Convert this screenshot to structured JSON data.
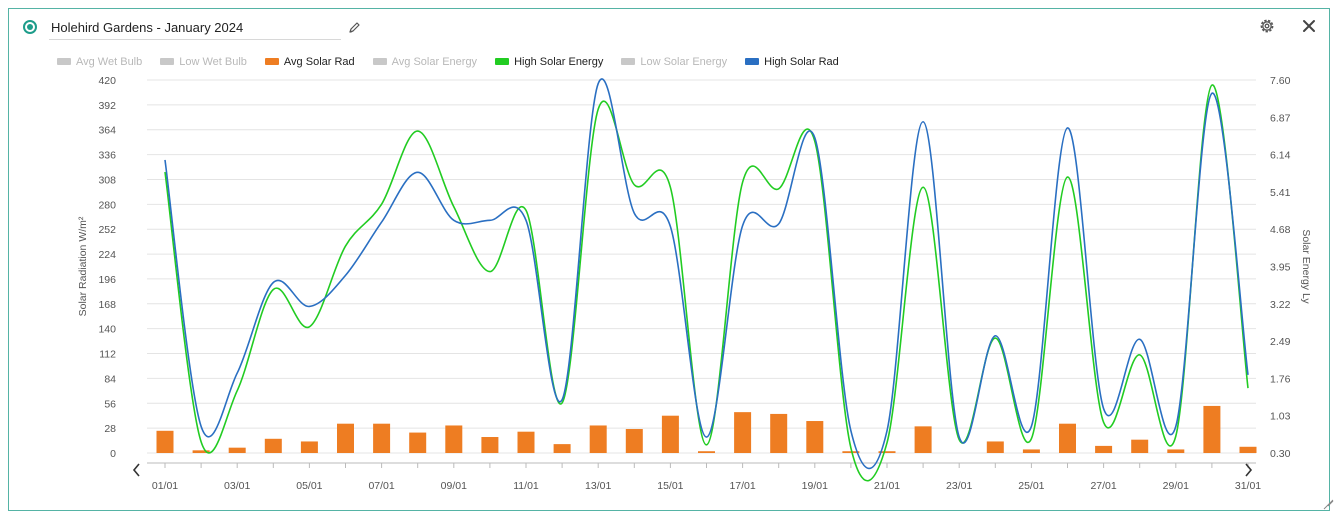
{
  "header": {
    "title": "Holehird Gardens - January 2024"
  },
  "icons": {
    "status": "radio-dot-icon",
    "edit": "pencil-icon",
    "settings": "gear-icon",
    "close": "close-icon"
  },
  "legend": [
    {
      "label": "Avg Wet Bulb",
      "color": "#c8c8c8",
      "active": false
    },
    {
      "label": "Low Wet Bulb",
      "color": "#c8c8c8",
      "active": false
    },
    {
      "label": "Avg Solar Rad",
      "color": "#ee7d22",
      "active": true
    },
    {
      "label": "Avg Solar Energy",
      "color": "#c8c8c8",
      "active": false
    },
    {
      "label": "High Solar Energy",
      "color": "#22cc22",
      "active": true
    },
    {
      "label": "Low Solar Energy",
      "color": "#c8c8c8",
      "active": false
    },
    {
      "label": "High Solar Rad",
      "color": "#2a6fc2",
      "active": true
    }
  ],
  "chart_data": {
    "type": "bar+line",
    "x": [
      "01/01",
      "02/01",
      "03/01",
      "04/01",
      "05/01",
      "06/01",
      "07/01",
      "08/01",
      "09/01",
      "10/01",
      "11/01",
      "12/01",
      "13/01",
      "14/01",
      "15/01",
      "16/01",
      "17/01",
      "18/01",
      "19/01",
      "20/01",
      "21/01",
      "22/01",
      "23/01",
      "24/01",
      "25/01",
      "26/01",
      "27/01",
      "28/01",
      "29/01",
      "30/01",
      "31/01"
    ],
    "x_tick_labels": [
      "01/01",
      "03/01",
      "05/01",
      "07/01",
      "09/01",
      "11/01",
      "13/01",
      "15/01",
      "17/01",
      "19/01",
      "21/01",
      "23/01",
      "25/01",
      "27/01",
      "29/01",
      "31/01"
    ],
    "ylabel_left": "Solar Radiation W/m²",
    "ylabel_right": "Solar Energy Ly",
    "ylim_left": [
      0,
      420
    ],
    "yticks_left": [
      "0",
      "28",
      "56",
      "84",
      "112",
      "140",
      "168",
      "196",
      "224",
      "252",
      "280",
      "308",
      "336",
      "364",
      "392",
      "420"
    ],
    "ylim_right": [
      0.3,
      7.6
    ],
    "yticks_right": [
      "0.30",
      "1.03",
      "1.76",
      "2.49",
      "3.22",
      "3.95",
      "4.68",
      "5.41",
      "6.14",
      "6.87",
      "7.60"
    ],
    "grid": true,
    "legend_position": "top-left",
    "series": [
      {
        "name": "Avg Solar Rad",
        "kind": "bar",
        "axis": "left",
        "color": "#ee7d22",
        "values": [
          25,
          3,
          6,
          16,
          13,
          33,
          33,
          23,
          31,
          18,
          24,
          10,
          31,
          27,
          42,
          2,
          46,
          44,
          36,
          2,
          2,
          30,
          0,
          13,
          4,
          33,
          8,
          15,
          4,
          53,
          7
        ]
      },
      {
        "name": "High Solar Energy",
        "kind": "line",
        "axis": "right",
        "color": "#22cc22",
        "values": [
          5.8,
          0.52,
          1.52,
          3.5,
          2.77,
          4.35,
          5.17,
          6.6,
          5.12,
          3.85,
          5.05,
          1.28,
          7.03,
          5.55,
          5.5,
          0.46,
          5.6,
          5.47,
          6.4,
          0.4,
          0.5,
          5.5,
          0.56,
          2.55,
          0.58,
          5.7,
          0.9,
          2.22,
          0.63,
          7.5,
          1.57
        ]
      },
      {
        "name": "High Solar Rad",
        "kind": "line",
        "axis": "left",
        "color": "#2a6fc2",
        "values": [
          330,
          30,
          90,
          192,
          165,
          200,
          260,
          316,
          262,
          262,
          262,
          60,
          416,
          270,
          255,
          18,
          256,
          258,
          355,
          25,
          25,
          373,
          18,
          132,
          30,
          366,
          50,
          128,
          30,
          405,
          88
        ]
      }
    ]
  }
}
